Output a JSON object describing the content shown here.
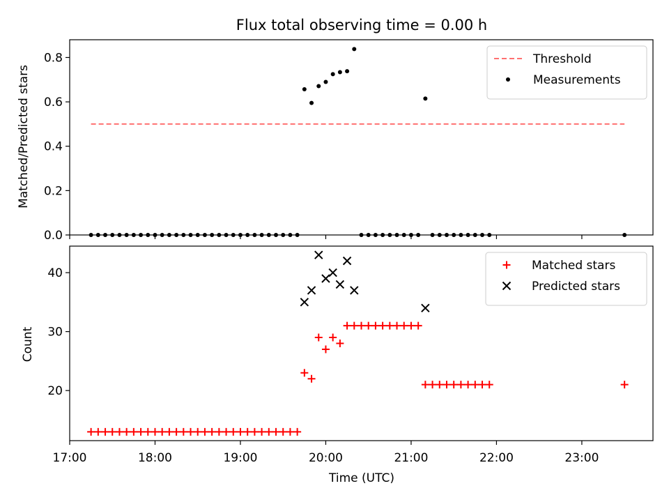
{
  "chart_data": [
    {
      "type": "scatter",
      "title": "Flux total observing time = 0.00 h",
      "xlabel": "",
      "ylabel": "Matched/Predicted stars",
      "xlim": [
        "17:00",
        "23:50"
      ],
      "ylim": [
        0,
        0.88
      ],
      "yticks": [
        0.0,
        0.2,
        0.4,
        0.6,
        0.8
      ],
      "ytick_labels": [
        "0.0",
        "0.2",
        "0.4",
        "0.6",
        "0.8"
      ],
      "xticks": [
        "17:00",
        "18:00",
        "19:00",
        "20:00",
        "21:00",
        "22:00",
        "23:00"
      ],
      "show_xtick_labels": false,
      "legend": {
        "placement": "top-right",
        "entries": [
          {
            "label": "Threshold",
            "marker": "dashed-line",
            "color": "#ff7070"
          },
          {
            "label": "Measurements",
            "marker": "dot",
            "color": "#000000"
          }
        ]
      },
      "threshold": {
        "name": "Threshold",
        "value": 0.5,
        "x_start": "17:15",
        "x_end": "23:30",
        "color": "#ff7070"
      },
      "series": [
        {
          "name": "Measurements",
          "marker": "dot",
          "color": "#000000",
          "points": [
            [
              "17:15",
              0
            ],
            [
              "17:20",
              0
            ],
            [
              "17:25",
              0
            ],
            [
              "17:30",
              0
            ],
            [
              "17:35",
              0
            ],
            [
              "17:40",
              0
            ],
            [
              "17:45",
              0
            ],
            [
              "17:50",
              0
            ],
            [
              "17:55",
              0
            ],
            [
              "18:00",
              0
            ],
            [
              "18:05",
              0
            ],
            [
              "18:10",
              0
            ],
            [
              "18:15",
              0
            ],
            [
              "18:20",
              0
            ],
            [
              "18:25",
              0
            ],
            [
              "18:30",
              0
            ],
            [
              "18:35",
              0
            ],
            [
              "18:40",
              0
            ],
            [
              "18:45",
              0
            ],
            [
              "18:50",
              0
            ],
            [
              "18:55",
              0
            ],
            [
              "19:00",
              0
            ],
            [
              "19:05",
              0
            ],
            [
              "19:10",
              0
            ],
            [
              "19:15",
              0
            ],
            [
              "19:20",
              0
            ],
            [
              "19:25",
              0
            ],
            [
              "19:30",
              0
            ],
            [
              "19:35",
              0
            ],
            [
              "19:40",
              0
            ],
            [
              "19:45",
              0.657
            ],
            [
              "19:50",
              0.595
            ],
            [
              "19:55",
              0.671
            ],
            [
              "20:00",
              0.69
            ],
            [
              "20:05",
              0.725
            ],
            [
              "20:10",
              0.734
            ],
            [
              "20:15",
              0.738
            ],
            [
              "20:20",
              0.838
            ],
            [
              "20:25",
              0
            ],
            [
              "20:30",
              0
            ],
            [
              "20:35",
              0
            ],
            [
              "20:40",
              0
            ],
            [
              "20:45",
              0
            ],
            [
              "20:50",
              0
            ],
            [
              "20:55",
              0
            ],
            [
              "21:00",
              0
            ],
            [
              "21:05",
              0
            ],
            [
              "21:10",
              0.615
            ],
            [
              "21:15",
              0
            ],
            [
              "21:20",
              0
            ],
            [
              "21:25",
              0
            ],
            [
              "21:30",
              0
            ],
            [
              "21:35",
              0
            ],
            [
              "21:40",
              0
            ],
            [
              "21:45",
              0
            ],
            [
              "21:50",
              0
            ],
            [
              "21:55",
              0
            ],
            [
              "23:30",
              0
            ]
          ]
        }
      ]
    },
    {
      "type": "scatter",
      "title": "",
      "xlabel": "Time (UTC)",
      "ylabel": "Count",
      "xlim": [
        "17:00",
        "23:50"
      ],
      "ylim": [
        11.5,
        44.5
      ],
      "yticks": [
        20,
        30,
        40
      ],
      "ytick_labels": [
        "20",
        "30",
        "40"
      ],
      "xticks": [
        "17:00",
        "18:00",
        "19:00",
        "20:00",
        "21:00",
        "22:00",
        "23:00"
      ],
      "xtick_labels": [
        "17:00",
        "18:00",
        "19:00",
        "20:00",
        "21:00",
        "22:00",
        "23:00"
      ],
      "show_xtick_labels": true,
      "legend": {
        "placement": "top-right",
        "entries": [
          {
            "label": "Matched stars",
            "marker": "plus",
            "color": "#ff0000"
          },
          {
            "label": "Predicted stars",
            "marker": "x",
            "color": "#000000"
          }
        ]
      },
      "series": [
        {
          "name": "Matched stars",
          "marker": "plus",
          "color": "#ff0000",
          "points": [
            [
              "17:15",
              13
            ],
            [
              "17:20",
              13
            ],
            [
              "17:25",
              13
            ],
            [
              "17:30",
              13
            ],
            [
              "17:35",
              13
            ],
            [
              "17:40",
              13
            ],
            [
              "17:45",
              13
            ],
            [
              "17:50",
              13
            ],
            [
              "17:55",
              13
            ],
            [
              "18:00",
              13
            ],
            [
              "18:05",
              13
            ],
            [
              "18:10",
              13
            ],
            [
              "18:15",
              13
            ],
            [
              "18:20",
              13
            ],
            [
              "18:25",
              13
            ],
            [
              "18:30",
              13
            ],
            [
              "18:35",
              13
            ],
            [
              "18:40",
              13
            ],
            [
              "18:45",
              13
            ],
            [
              "18:50",
              13
            ],
            [
              "18:55",
              13
            ],
            [
              "19:00",
              13
            ],
            [
              "19:05",
              13
            ],
            [
              "19:10",
              13
            ],
            [
              "19:15",
              13
            ],
            [
              "19:20",
              13
            ],
            [
              "19:25",
              13
            ],
            [
              "19:30",
              13
            ],
            [
              "19:35",
              13
            ],
            [
              "19:40",
              13
            ],
            [
              "19:45",
              23
            ],
            [
              "19:50",
              22
            ],
            [
              "19:55",
              29
            ],
            [
              "20:00",
              27
            ],
            [
              "20:05",
              29
            ],
            [
              "20:10",
              28
            ],
            [
              "20:15",
              31
            ],
            [
              "20:20",
              31
            ],
            [
              "20:25",
              31
            ],
            [
              "20:30",
              31
            ],
            [
              "20:35",
              31
            ],
            [
              "20:40",
              31
            ],
            [
              "20:45",
              31
            ],
            [
              "20:50",
              31
            ],
            [
              "20:55",
              31
            ],
            [
              "21:00",
              31
            ],
            [
              "21:05",
              31
            ],
            [
              "21:10",
              21
            ],
            [
              "21:15",
              21
            ],
            [
              "21:20",
              21
            ],
            [
              "21:25",
              21
            ],
            [
              "21:30",
              21
            ],
            [
              "21:35",
              21
            ],
            [
              "21:40",
              21
            ],
            [
              "21:45",
              21
            ],
            [
              "21:50",
              21
            ],
            [
              "21:55",
              21
            ],
            [
              "23:30",
              21
            ]
          ]
        },
        {
          "name": "Predicted stars",
          "marker": "x",
          "color": "#000000",
          "points": [
            [
              "19:45",
              35
            ],
            [
              "19:50",
              37
            ],
            [
              "19:55",
              43
            ],
            [
              "20:00",
              39
            ],
            [
              "20:05",
              40
            ],
            [
              "20:10",
              38
            ],
            [
              "20:15",
              42
            ],
            [
              "20:20",
              37
            ],
            [
              "21:10",
              34
            ]
          ]
        }
      ]
    }
  ]
}
